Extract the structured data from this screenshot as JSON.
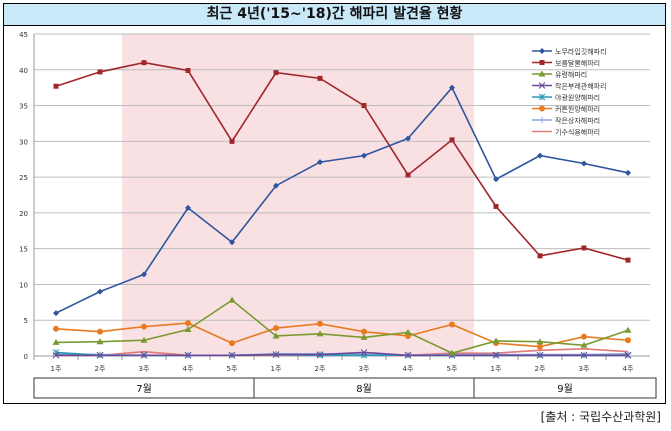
{
  "chart_data": {
    "type": "line",
    "title": "최근 4년('15~'18)간 해파리 발견율 현황",
    "categories": [
      "1주",
      "2주",
      "3주",
      "4주",
      "5주",
      "1주",
      "2주",
      "3주",
      "4주",
      "5주",
      "1주",
      "2주",
      "3주",
      "4주"
    ],
    "groups": [
      {
        "label": "7월",
        "span": 5
      },
      {
        "label": "8월",
        "span": 5
      },
      {
        "label": "9월",
        "span": 4
      }
    ],
    "ylim": [
      0,
      45
    ],
    "yticks": [
      0,
      5,
      10,
      15,
      20,
      25,
      30,
      35,
      40,
      45
    ],
    "grid": true,
    "legend": "right",
    "highlight_range": [
      "3주 (7월)",
      "5주 (8월)"
    ],
    "highlight_color": "#f9e1e3",
    "series": [
      {
        "name": "노무라입깃해파리",
        "color": "#2f55a0",
        "marker": "diamond",
        "values": [
          6.0,
          9.0,
          11.4,
          20.7,
          15.9,
          23.8,
          27.1,
          28.0,
          30.4,
          37.5,
          24.7,
          28.0,
          26.9,
          25.6
        ]
      },
      {
        "name": "보름달물해파리",
        "color": "#a0262a",
        "marker": "square",
        "values": [
          37.7,
          39.7,
          41.0,
          39.9,
          30.0,
          39.6,
          38.8,
          35.0,
          25.3,
          30.2,
          20.9,
          14.0,
          15.1,
          13.4
        ]
      },
      {
        "name": "유령해파리",
        "color": "#7a9a30",
        "marker": "triangle",
        "values": [
          1.9,
          2.0,
          2.2,
          3.7,
          7.8,
          2.8,
          3.1,
          2.6,
          3.3,
          0.4,
          2.1,
          2.0,
          1.5,
          3.6
        ]
      },
      {
        "name": "작은부레관해파리",
        "color": "#6a4a9a",
        "marker": "x",
        "values": [
          0.1,
          0.1,
          0.1,
          0.1,
          0.1,
          0.2,
          0.2,
          0.5,
          0.1,
          0.1,
          0.1,
          0.1,
          0.1,
          0.1
        ]
      },
      {
        "name": "야광원양해파리",
        "color": "#2a9ab5",
        "marker": "star",
        "values": [
          0.5,
          0.1,
          0.1,
          0.1,
          0.1,
          0.2,
          0.1,
          0.1,
          0.1,
          0.1,
          0.1,
          0.1,
          0.1,
          0.1
        ]
      },
      {
        "name": "커튼원양해파리",
        "color": "#e87a22",
        "marker": "circle",
        "values": [
          3.8,
          3.4,
          4.1,
          4.6,
          1.8,
          3.9,
          4.5,
          3.4,
          2.8,
          4.4,
          1.8,
          1.3,
          2.7,
          2.2
        ]
      },
      {
        "name": "작은상자해파리",
        "color": "#8aa8dc",
        "marker": "plus",
        "values": [
          0.3,
          0.2,
          0.1,
          0.1,
          0.1,
          0.3,
          0.3,
          0.2,
          0.1,
          0.2,
          0.2,
          0.2,
          0.2,
          0.3
        ]
      },
      {
        "name": "기수식용해파리",
        "color": "#e07878",
        "marker": "none",
        "values": [
          0.1,
          0.1,
          0.6,
          0.1,
          0.05,
          0.1,
          0.3,
          0.1,
          0.1,
          0.4,
          0.4,
          0.8,
          1.0,
          0.6
        ]
      }
    ]
  },
  "source": "[출처 : 국립수산과학원]"
}
